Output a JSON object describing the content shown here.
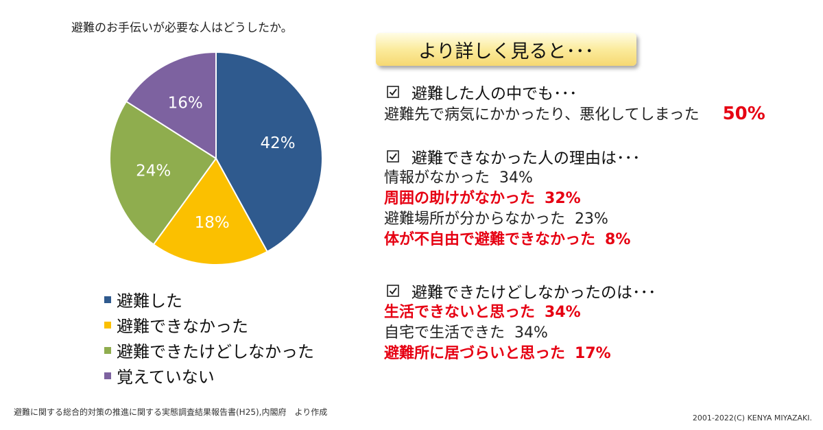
{
  "chart_data": {
    "type": "pie",
    "title": "避難のお手伝いが必要な人はどうしたか。",
    "categories": [
      "避難した",
      "避難できなかった",
      "避難できたけどしなかった",
      "覚えていない"
    ],
    "values": [
      42,
      18,
      24,
      16
    ],
    "labels": [
      "42%",
      "18%",
      "24%",
      "16%"
    ],
    "colors": [
      "#2f5a8e",
      "#fbc000",
      "#8fad4e",
      "#7d62a0"
    ],
    "legend_position": "bottom"
  },
  "banner": {
    "text": "より詳しく見ると･･･"
  },
  "sections": [
    {
      "heading": "避難した人の中でも･･･",
      "lines": [
        {
          "text": "避難先で病気にかかったり、悪化してしまった",
          "pct": "50%",
          "style": "big"
        }
      ]
    },
    {
      "heading": "避難できなかった人の理由は･･･",
      "lines": [
        {
          "text": "情報がなかった",
          "pct": "34%",
          "style": "normal"
        },
        {
          "text": "周囲の助けがなかった",
          "pct": "32%",
          "style": "red"
        },
        {
          "text": "避難場所が分からなかった",
          "pct": "23%",
          "style": "normal"
        },
        {
          "text": "体が不自由で避難できなかった",
          "pct": "8%",
          "style": "red"
        }
      ]
    },
    {
      "heading": "避難できたけどしなかったのは･･･",
      "lines": [
        {
          "text": "生活できないと思った",
          "pct": "34%",
          "style": "red"
        },
        {
          "text": "自宅で生活できた",
          "pct": "34%",
          "style": "normal"
        },
        {
          "text": "避難所に居づらいと思った",
          "pct": "17%",
          "style": "red"
        }
      ]
    }
  ],
  "footer": {
    "source": "避難に関する総合的対策の推進に関する実態調査結果報告書(H25),内閣府　より作成",
    "copyright": "2001-2022(C) KENYA MIYAZAKI."
  }
}
